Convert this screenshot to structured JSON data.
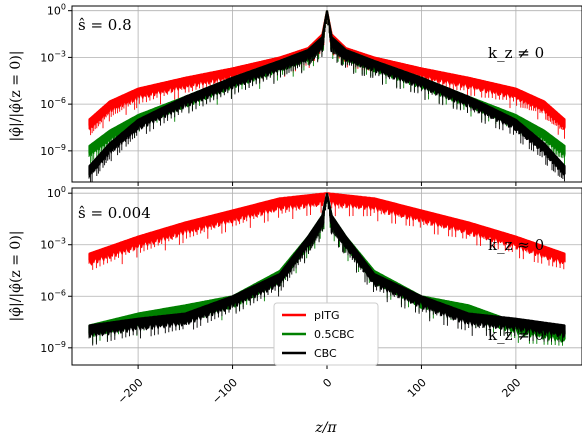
{
  "chart_data": [
    {
      "type": "line",
      "panel": "top",
      "annotation_s": "ŝ = 0.8",
      "annotation_kz": "k_z ≠ 0",
      "ylabel": "|φ̂|/|φ̂(z = 0)|",
      "yscale": "log",
      "ylim": [
        1e-11,
        2
      ],
      "yticks": [
        {
          "v": 1,
          "label": "10^0"
        },
        {
          "v": 0.001,
          "label": "10^-3"
        },
        {
          "v": 1e-06,
          "label": "10^-6"
        },
        {
          "v": 1e-09,
          "label": "10^-9"
        }
      ],
      "xlim": [
        -270,
        270
      ],
      "grid": true,
      "series": [
        {
          "name": "pITG",
          "color": "#ff0000",
          "x": [
            -252,
            -230,
            -200,
            -150,
            -100,
            -50,
            -20,
            -5,
            0,
            5,
            20,
            50,
            100,
            150,
            200,
            230,
            252
          ],
          "y": [
            1e-07,
            1.5e-06,
            1e-05,
            5e-05,
            0.0002,
            0.001,
            0.004,
            0.03,
            1,
            0.03,
            0.004,
            0.001,
            0.0002,
            5e-05,
            1e-05,
            1.5e-06,
            1e-07
          ]
        },
        {
          "name": "0.5CBC",
          "color": "#008000",
          "x": [
            -252,
            -230,
            -200,
            -150,
            -100,
            -50,
            -20,
            -5,
            0,
            5,
            20,
            50,
            100,
            150,
            200,
            230,
            252
          ],
          "y": [
            2e-09,
            2e-08,
            2e-07,
            3e-06,
            5e-05,
            0.0006,
            0.003,
            0.02,
            1,
            0.02,
            0.003,
            0.0006,
            5e-05,
            3e-06,
            2e-07,
            2e-08,
            2e-09
          ]
        },
        {
          "name": "CBC",
          "color": "#000000",
          "x": [
            -252,
            -230,
            -200,
            -150,
            -100,
            -50,
            -20,
            -5,
            0,
            5,
            20,
            50,
            100,
            150,
            200,
            230,
            252
          ],
          "y": [
            1e-10,
            3e-09,
            1e-07,
            3e-06,
            5e-05,
            0.0006,
            0.003,
            0.02,
            1,
            0.02,
            0.003,
            0.0006,
            5e-05,
            3e-06,
            1e-07,
            3e-09,
            1e-10
          ]
        }
      ]
    },
    {
      "type": "line",
      "panel": "bottom",
      "annotation_s": "ŝ = 0.004",
      "annotation_kz0": "k_z ≈ 0",
      "annotation_kz": "k_z ≠ 0",
      "ylabel": "|φ̂|/|φ̂(z = 0)|",
      "yscale": "log",
      "ylim": [
        1e-10,
        2
      ],
      "yticks": [
        {
          "v": 1,
          "label": "10^0"
        },
        {
          "v": 0.001,
          "label": "10^-3"
        },
        {
          "v": 1e-06,
          "label": "10^-6"
        },
        {
          "v": 1e-09,
          "label": "10^-9"
        }
      ],
      "xlim": [
        -270,
        270
      ],
      "xlabel": "z/π",
      "xticks": [
        -200,
        -100,
        0,
        100,
        200
      ],
      "xtick_labels": [
        "−200",
        "−100",
        "0",
        "100",
        "200"
      ],
      "grid": true,
      "legend": "center-bottom",
      "series": [
        {
          "name": "pITG",
          "color": "#ff0000",
          "x": [
            -252,
            -200,
            -150,
            -100,
            -50,
            0,
            50,
            100,
            150,
            200,
            252
          ],
          "y": [
            0.0003,
            0.003,
            0.02,
            0.1,
            0.5,
            1,
            0.5,
            0.1,
            0.02,
            0.003,
            0.0003
          ]
        },
        {
          "name": "0.5CBC",
          "color": "#008000",
          "x": [
            -252,
            -200,
            -150,
            -100,
            -50,
            -20,
            -5,
            0,
            5,
            20,
            50,
            100,
            150,
            200,
            252
          ],
          "y": [
            2e-08,
            1e-07,
            3e-07,
            1e-06,
            3e-05,
            0.003,
            0.05,
            1,
            0.05,
            0.003,
            3e-05,
            1e-06,
            3e-07,
            3e-08,
            1e-08
          ]
        },
        {
          "name": "CBC",
          "color": "#000000",
          "x": [
            -252,
            -200,
            -150,
            -100,
            -50,
            -20,
            -5,
            0,
            5,
            20,
            50,
            100,
            150,
            200,
            252
          ],
          "y": [
            2e-08,
            5e-08,
            1e-07,
            1e-06,
            2e-05,
            0.003,
            0.05,
            1,
            0.05,
            0.003,
            2e-05,
            1e-06,
            1e-07,
            5e-08,
            2e-08
          ]
        }
      ]
    }
  ]
}
